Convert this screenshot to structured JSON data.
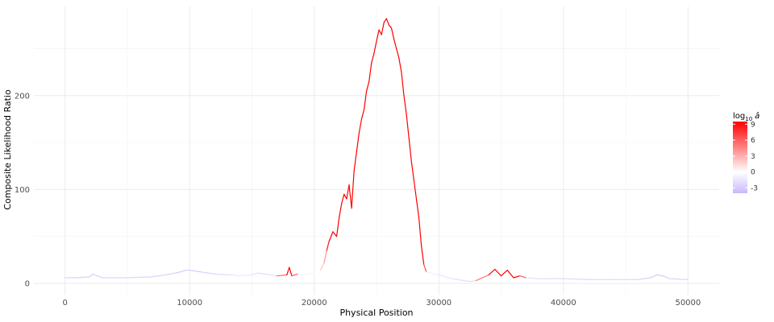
{
  "chart_data": {
    "type": "line",
    "title": "",
    "xlabel": "Physical Position",
    "ylabel": "Composite Likelihood Ratio",
    "xlim": [
      -2500,
      52500
    ],
    "ylim": [
      -12,
      295
    ],
    "x_ticks": [
      0,
      10000,
      20000,
      30000,
      40000,
      50000
    ],
    "x_tick_labels": [
      "0",
      "10000",
      "20000",
      "30000",
      "40000",
      "50000"
    ],
    "y_ticks": [
      0,
      100,
      200
    ],
    "y_tick_labels": [
      "0",
      "100",
      "200"
    ],
    "grid": true,
    "legend": {
      "title_main": "log",
      "title_sub": "10",
      "title_symbol": "â",
      "placement": "right",
      "ticks": [
        9,
        6,
        3,
        0,
        -3
      ],
      "tick_labels": [
        "9",
        "6",
        "3",
        "0",
        "-3"
      ],
      "range": [
        -4,
        9.5
      ],
      "colors": {
        "low": "#c9b7fb",
        "mid": "#ffffff",
        "high": "#ff0000"
      }
    },
    "series": [
      {
        "points": [
          [
            0,
            6,
            -2.5
          ],
          [
            1000,
            6,
            -2.5
          ],
          [
            2000,
            7,
            -2.8
          ],
          [
            2200,
            10,
            -3
          ],
          [
            3000,
            6,
            -2.5
          ],
          [
            5000,
            6,
            -2.3
          ],
          [
            7000,
            7,
            -2.5
          ],
          [
            8500,
            10,
            -2.6
          ],
          [
            9200,
            12,
            -2.8
          ],
          [
            9700,
            14,
            -3
          ],
          [
            10000,
            14,
            -3
          ],
          [
            10500,
            13,
            -2.8
          ],
          [
            11000,
            12,
            -2.6
          ],
          [
            12000,
            10,
            -2.5
          ],
          [
            13000,
            9,
            -2
          ],
          [
            13500,
            9,
            -1.5
          ],
          [
            14000,
            8,
            -1.2
          ],
          [
            15000,
            9,
            -1.5
          ],
          [
            15500,
            11,
            -2
          ],
          [
            16000,
            10,
            -2
          ],
          [
            17000,
            8,
            -1.8
          ],
          [
            17800,
            9,
            9
          ],
          [
            18000,
            17,
            9
          ],
          [
            18200,
            8,
            9
          ],
          [
            18700,
            10,
            -1
          ],
          [
            19000,
            9,
            -1
          ],
          [
            20000,
            11,
            -0.5
          ],
          [
            20500,
            14,
            0.5
          ],
          [
            20800,
            22,
            2
          ],
          [
            21000,
            35,
            3
          ],
          [
            21200,
            45,
            8
          ],
          [
            21500,
            55,
            9
          ],
          [
            21800,
            50,
            9
          ],
          [
            22000,
            70,
            9
          ],
          [
            22200,
            85,
            9
          ],
          [
            22400,
            95,
            9
          ],
          [
            22600,
            90,
            9
          ],
          [
            22800,
            105,
            9
          ],
          [
            23000,
            80,
            9
          ],
          [
            23200,
            120,
            9
          ],
          [
            23400,
            140,
            9
          ],
          [
            23600,
            160,
            9
          ],
          [
            23800,
            175,
            9
          ],
          [
            24000,
            185,
            9
          ],
          [
            24200,
            205,
            9
          ],
          [
            24400,
            215,
            9
          ],
          [
            24600,
            235,
            9
          ],
          [
            24800,
            245,
            9
          ],
          [
            25000,
            258,
            9
          ],
          [
            25200,
            270,
            9
          ],
          [
            25400,
            265,
            9
          ],
          [
            25600,
            278,
            9
          ],
          [
            25800,
            282,
            9
          ],
          [
            26000,
            275,
            9
          ],
          [
            26200,
            272,
            9
          ],
          [
            26400,
            260,
            9
          ],
          [
            26600,
            250,
            9
          ],
          [
            26800,
            240,
            9
          ],
          [
            27000,
            225,
            9
          ],
          [
            27200,
            200,
            9
          ],
          [
            27400,
            180,
            9
          ],
          [
            27600,
            155,
            9
          ],
          [
            27800,
            130,
            9
          ],
          [
            28000,
            110,
            9
          ],
          [
            28200,
            90,
            9
          ],
          [
            28400,
            70,
            9
          ],
          [
            28600,
            40,
            9
          ],
          [
            28800,
            20,
            9
          ],
          [
            29000,
            12,
            -0.5
          ],
          [
            30000,
            9,
            -1.2
          ],
          [
            31000,
            5,
            -1.8
          ],
          [
            32000,
            3,
            -2
          ],
          [
            32500,
            2,
            -2
          ],
          [
            33000,
            3,
            -2
          ],
          [
            34000,
            9,
            9
          ],
          [
            34500,
            15,
            9
          ],
          [
            35000,
            8,
            9
          ],
          [
            35500,
            14,
            9
          ],
          [
            36000,
            6,
            9
          ],
          [
            36500,
            8,
            9
          ],
          [
            37000,
            6,
            -1.5
          ],
          [
            38000,
            5,
            -2
          ],
          [
            39000,
            5,
            -2.2
          ],
          [
            40000,
            5,
            -2.2
          ],
          [
            42000,
            4,
            -2.2
          ],
          [
            44000,
            4,
            -2.2
          ],
          [
            46000,
            4,
            -2.3
          ],
          [
            47000,
            6,
            -3
          ],
          [
            47500,
            9,
            -3
          ],
          [
            48000,
            8,
            -3
          ],
          [
            48500,
            5,
            -2.5
          ],
          [
            50000,
            4,
            -2.5
          ]
        ]
      }
    ]
  }
}
